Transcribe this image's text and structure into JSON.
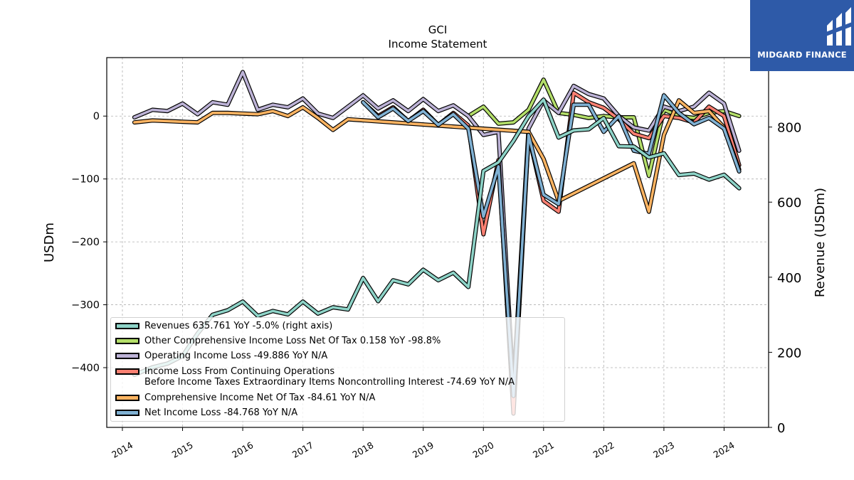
{
  "chart_data": {
    "type": "line",
    "title": "GCI",
    "subtitle": "Income Statement",
    "ylabel": "USDm",
    "ylabel_right": "Revenue (USDm)",
    "ylim": [
      -495,
      93
    ],
    "ylim_right": [
      0,
      985
    ],
    "xlim": [
      2013.74,
      2024.74
    ],
    "yticks": [
      0,
      -100,
      -200,
      -300,
      -400
    ],
    "yticks_right": [
      800,
      600,
      400,
      200,
      0
    ],
    "xticks": [
      "2014",
      "2015",
      "2016",
      "2017",
      "2018",
      "2019",
      "2020",
      "2021",
      "2022",
      "2023",
      "2024"
    ],
    "grid": true,
    "legend_position": "lower-left",
    "series": [
      {
        "name": "Operating Income Loss  -49.886 YoY N/A",
        "axis": "left",
        "color": "#bcb2d6",
        "x": [
          2014.2,
          2014.5,
          2014.75,
          2015.0,
          2015.25,
          2015.5,
          2015.75,
          2016.0,
          2016.25,
          2016.5,
          2016.75,
          2017.0,
          2017.25,
          2017.5,
          2017.75,
          2018.0,
          2018.25,
          2018.5,
          2018.75,
          2019.0,
          2019.25,
          2019.5,
          2019.75,
          2020.0,
          2020.25,
          2020.5,
          2020.75,
          2021.0,
          2021.25,
          2021.5,
          2021.75,
          2022.0,
          2022.25,
          2022.5,
          2022.75,
          2023.0,
          2023.25,
          2023.5,
          2023.75,
          2024.0,
          2024.25
        ],
        "y": [
          -2,
          10,
          8,
          20,
          3,
          22,
          18,
          70,
          10,
          18,
          14,
          28,
          4,
          -3,
          15,
          33,
          12,
          25,
          8,
          27,
          8,
          17,
          0,
          -30,
          -25,
          -430,
          -20,
          25,
          5,
          48,
          35,
          28,
          0,
          -18,
          -23,
          15,
          8,
          15,
          37,
          20,
          -55
        ]
      },
      {
        "name": "Other Comprehensive Income Loss Net Of Tax  0.158 YoY -98.8%",
        "axis": "left",
        "color": "#b3de69",
        "x": [
          2019.75,
          2020.0,
          2020.25,
          2020.5,
          2020.75,
          2021.0,
          2021.25,
          2021.5,
          2021.75,
          2022.0,
          2022.25,
          2022.5,
          2022.75,
          2023.0,
          2023.25,
          2023.5,
          2023.75,
          2024.0,
          2024.25
        ],
        "y": [
          0,
          15,
          -12,
          -10,
          10,
          58,
          5,
          2,
          -3,
          0,
          -2,
          -2,
          -95,
          10,
          0,
          -3,
          5,
          8,
          0
        ]
      },
      {
        "name": "Income Loss From Continuing Operations\nBefore Income Taxes Extraordinary Items Noncontrolling Interest  -74.69 YoY N/A",
        "axis": "left",
        "color": "#fb8072",
        "x": [
          2018.0,
          2018.25,
          2018.5,
          2018.75,
          2019.0,
          2019.25,
          2019.5,
          2019.75,
          2020.0,
          2020.25,
          2020.5,
          2020.75,
          2021.0,
          2021.25,
          2021.5,
          2021.75,
          2022.0,
          2022.25,
          2022.5,
          2022.75,
          2023.0,
          2023.25,
          2023.5,
          2023.75,
          2024.0,
          2024.25
        ],
        "y": [
          22,
          0,
          14,
          -8,
          10,
          -14,
          5,
          -15,
          -188,
          -70,
          -473,
          -30,
          -135,
          -152,
          37,
          22,
          13,
          -5,
          -28,
          -35,
          0,
          -3,
          -10,
          15,
          0,
          -78
        ]
      },
      {
        "name": "Comprehensive Income Net Of Tax  -84.61 YoY N/A",
        "axis": "left",
        "color": "#fdb462",
        "x": [
          2014.2,
          2014.5,
          2014.75,
          2015.0,
          2015.25,
          2015.5,
          2015.75,
          2016.0,
          2016.25,
          2016.5,
          2016.75,
          2017.0,
          2017.25,
          2017.5,
          2017.75,
          2020.75,
          2021.0,
          2021.25,
          2022.5,
          2022.75,
          2023.0,
          2023.25,
          2023.5,
          2023.75,
          2024.0,
          2024.25
        ],
        "y": [
          -10,
          -7,
          -8,
          -9,
          -10,
          5,
          5,
          4,
          3,
          8,
          0,
          14,
          -3,
          -22,
          -5,
          -25,
          -68,
          -135,
          -75,
          -152,
          -30,
          25,
          5,
          8,
          -18,
          -85
        ]
      },
      {
        "name": "Net Income Loss  -84.768 YoY N/A",
        "axis": "left",
        "color": "#80b1d3",
        "x": [
          2018.0,
          2018.25,
          2018.5,
          2018.75,
          2019.0,
          2019.25,
          2019.5,
          2019.75,
          2020.0,
          2020.25,
          2020.5,
          2020.75,
          2021.0,
          2021.25,
          2021.5,
          2021.75,
          2022.0,
          2022.25,
          2022.5,
          2022.75,
          2023.0,
          2023.25,
          2023.5,
          2023.75,
          2024.0,
          2024.25
        ],
        "y": [
          22,
          -2,
          12,
          -8,
          8,
          -14,
          3,
          -20,
          -160,
          -80,
          -445,
          -30,
          -125,
          -140,
          18,
          18,
          -25,
          0,
          -55,
          -60,
          33,
          5,
          -13,
          -3,
          -20,
          -88
        ]
      },
      {
        "name": "Revenues  635.761 YoY -5.0% (right axis)",
        "axis": "right",
        "color": "#8dd3c7",
        "x": [
          2014.2,
          2014.5,
          2014.75,
          2015.0,
          2015.25,
          2015.5,
          2015.75,
          2016.0,
          2016.25,
          2016.5,
          2016.75,
          2017.0,
          2017.25,
          2017.5,
          2017.75,
          2018.0,
          2018.25,
          2018.5,
          2018.75,
          2019.0,
          2019.25,
          2019.5,
          2019.75,
          2020.0,
          2020.25,
          2020.5,
          2020.75,
          2021.0,
          2021.25,
          2021.5,
          2021.75,
          2022.0,
          2022.25,
          2022.5,
          2022.75,
          2023.0,
          2023.25,
          2023.5,
          2023.75,
          2024.0,
          2024.25
        ],
        "y": [
          140,
          160,
          170,
          190,
          250,
          300,
          312,
          335,
          297,
          310,
          301,
          335,
          303,
          320,
          314,
          398,
          336,
          392,
          381,
          420,
          392,
          412,
          374,
          683,
          706,
          763,
          829,
          873,
          772,
          791,
          794,
          824,
          749,
          748,
          719,
          730,
          672,
          676,
          660,
          673,
          637
        ]
      }
    ]
  },
  "legend": [
    {
      "label": "Revenues  635.761 YoY -5.0% (right axis)",
      "color": "#8dd3c7"
    },
    {
      "label": "Other Comprehensive Income Loss Net Of Tax  0.158 YoY -98.8%",
      "color": "#b3de69"
    },
    {
      "label": "Operating Income Loss  -49.886 YoY N/A",
      "color": "#bcb2d6"
    },
    {
      "label": "Income Loss From Continuing Operations\nBefore Income Taxes Extraordinary Items Noncontrolling Interest  -74.69 YoY N/A",
      "color": "#fb8072"
    },
    {
      "label": "Comprehensive Income Net Of Tax  -84.61 YoY N/A",
      "color": "#fdb462"
    },
    {
      "label": "Net Income Loss  -84.768 YoY N/A",
      "color": "#80b1d3"
    }
  ],
  "logo": {
    "text": "MIDGARD FINANCE",
    "color": "#2e5aa8"
  }
}
